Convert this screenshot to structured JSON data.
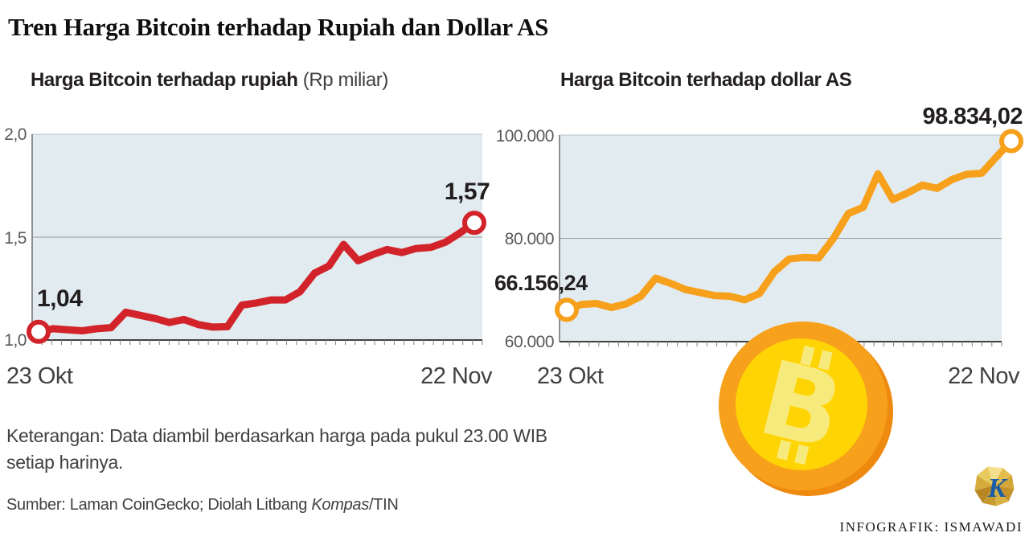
{
  "title": "Tren Harga Bitcoin terhadap Rupiah dan Dollar AS",
  "chart_data": [
    {
      "type": "line",
      "title_bold": "Harga Bitcoin terhadap rupiah",
      "title_note": " (Rp miliar)",
      "ylabel": "Rp miliar",
      "x_tick_labels": [
        "23 Okt",
        "22 Nov"
      ],
      "ylim": [
        1.0,
        2.0
      ],
      "y_tick_labels": [
        "2,0",
        "1,5",
        "1,0"
      ],
      "gridlines": [
        1.5
      ],
      "first_point_label": "1,04",
      "last_point_label": "1,57",
      "line_color": "#D2232A",
      "values": [
        1.04,
        1.055,
        1.05,
        1.045,
        1.055,
        1.06,
        1.135,
        1.12,
        1.105,
        1.085,
        1.1,
        1.075,
        1.063,
        1.065,
        1.17,
        1.18,
        1.195,
        1.195,
        1.235,
        1.325,
        1.36,
        1.465,
        1.385,
        1.415,
        1.44,
        1.425,
        1.445,
        1.45,
        1.475,
        1.52,
        1.57
      ]
    },
    {
      "type": "line",
      "title_bold": "Harga Bitcoin terhadap dollar AS",
      "title_note": "",
      "ylabel": "dollar AS",
      "x_tick_labels": [
        "23 Okt",
        "22 Nov"
      ],
      "ylim": [
        60000,
        100000
      ],
      "y_tick_labels": [
        "100.000",
        "80.000",
        "60.000"
      ],
      "gridlines": [
        80000
      ],
      "first_point_label": "66.156,24",
      "last_point_label": "98.834,02",
      "line_color": "#F7A01B",
      "values": [
        66156.24,
        67200,
        67400,
        66600,
        67300,
        68800,
        72300,
        71300,
        70100,
        69500,
        68900,
        68800,
        68100,
        69300,
        73500,
        76000,
        76300,
        76200,
        80000,
        84800,
        86000,
        92500,
        87500,
        88800,
        90300,
        89700,
        91400,
        92400,
        92600,
        95800,
        98834.02
      ]
    }
  ],
  "footnote": {
    "line1": "Keterangan: Data diambil berdasarkan harga pada pukul 23.00 WIB",
    "line2": "setiap harinya."
  },
  "source": {
    "prefix": "Sumber: Laman CoinGecko; Diolah Litbang ",
    "italic": "Kompas",
    "suffix": "/TIN"
  },
  "credit": "INFOGRAFIK: ISMAWADI",
  "icons": {
    "bitcoin_symbol": "B",
    "kompas_k": "K"
  },
  "colors": {
    "plot_bg": "#E2EBEF",
    "plot_top_border": "#B9C3C9",
    "grid": "#9B9B9B",
    "axis_side": "#6D6E71",
    "axis_bottom": "#414042",
    "tick": "#808285",
    "red_line": "#D2232A",
    "orange_line": "#F7A01B",
    "coin_outer": "#F7A01B",
    "coin_shadow": "#EE8A10",
    "coin_inner": "#FFD405",
    "coin_symbol": "#F7EA7D",
    "kompas_blue": "#1B5CA8"
  }
}
